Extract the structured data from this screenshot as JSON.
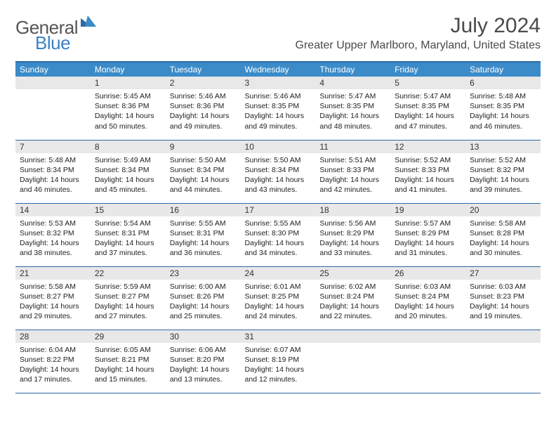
{
  "logo": {
    "text_left": "General",
    "text_right": "Blue"
  },
  "title": "July 2024",
  "location": "Greater Upper Marlboro, Maryland, United States",
  "colors": {
    "header_bg": "#3b8bc9",
    "header_text": "#ffffff",
    "border": "#2b6aa3",
    "daynum_bg": "#e8e8e8",
    "text": "#222222",
    "logo_gray": "#555555",
    "logo_blue": "#3b82c4"
  },
  "weekdays": [
    "Sunday",
    "Monday",
    "Tuesday",
    "Wednesday",
    "Thursday",
    "Friday",
    "Saturday"
  ],
  "weeks": [
    [
      {
        "n": "",
        "sunrise": "",
        "sunset": "",
        "daylight": "",
        "empty": true
      },
      {
        "n": "1",
        "sunrise": "Sunrise: 5:45 AM",
        "sunset": "Sunset: 8:36 PM",
        "daylight": "Daylight: 14 hours and 50 minutes."
      },
      {
        "n": "2",
        "sunrise": "Sunrise: 5:46 AM",
        "sunset": "Sunset: 8:36 PM",
        "daylight": "Daylight: 14 hours and 49 minutes."
      },
      {
        "n": "3",
        "sunrise": "Sunrise: 5:46 AM",
        "sunset": "Sunset: 8:35 PM",
        "daylight": "Daylight: 14 hours and 49 minutes."
      },
      {
        "n": "4",
        "sunrise": "Sunrise: 5:47 AM",
        "sunset": "Sunset: 8:35 PM",
        "daylight": "Daylight: 14 hours and 48 minutes."
      },
      {
        "n": "5",
        "sunrise": "Sunrise: 5:47 AM",
        "sunset": "Sunset: 8:35 PM",
        "daylight": "Daylight: 14 hours and 47 minutes."
      },
      {
        "n": "6",
        "sunrise": "Sunrise: 5:48 AM",
        "sunset": "Sunset: 8:35 PM",
        "daylight": "Daylight: 14 hours and 46 minutes."
      }
    ],
    [
      {
        "n": "7",
        "sunrise": "Sunrise: 5:48 AM",
        "sunset": "Sunset: 8:34 PM",
        "daylight": "Daylight: 14 hours and 46 minutes."
      },
      {
        "n": "8",
        "sunrise": "Sunrise: 5:49 AM",
        "sunset": "Sunset: 8:34 PM",
        "daylight": "Daylight: 14 hours and 45 minutes."
      },
      {
        "n": "9",
        "sunrise": "Sunrise: 5:50 AM",
        "sunset": "Sunset: 8:34 PM",
        "daylight": "Daylight: 14 hours and 44 minutes."
      },
      {
        "n": "10",
        "sunrise": "Sunrise: 5:50 AM",
        "sunset": "Sunset: 8:34 PM",
        "daylight": "Daylight: 14 hours and 43 minutes."
      },
      {
        "n": "11",
        "sunrise": "Sunrise: 5:51 AM",
        "sunset": "Sunset: 8:33 PM",
        "daylight": "Daylight: 14 hours and 42 minutes."
      },
      {
        "n": "12",
        "sunrise": "Sunrise: 5:52 AM",
        "sunset": "Sunset: 8:33 PM",
        "daylight": "Daylight: 14 hours and 41 minutes."
      },
      {
        "n": "13",
        "sunrise": "Sunrise: 5:52 AM",
        "sunset": "Sunset: 8:32 PM",
        "daylight": "Daylight: 14 hours and 39 minutes."
      }
    ],
    [
      {
        "n": "14",
        "sunrise": "Sunrise: 5:53 AM",
        "sunset": "Sunset: 8:32 PM",
        "daylight": "Daylight: 14 hours and 38 minutes."
      },
      {
        "n": "15",
        "sunrise": "Sunrise: 5:54 AM",
        "sunset": "Sunset: 8:31 PM",
        "daylight": "Daylight: 14 hours and 37 minutes."
      },
      {
        "n": "16",
        "sunrise": "Sunrise: 5:55 AM",
        "sunset": "Sunset: 8:31 PM",
        "daylight": "Daylight: 14 hours and 36 minutes."
      },
      {
        "n": "17",
        "sunrise": "Sunrise: 5:55 AM",
        "sunset": "Sunset: 8:30 PM",
        "daylight": "Daylight: 14 hours and 34 minutes."
      },
      {
        "n": "18",
        "sunrise": "Sunrise: 5:56 AM",
        "sunset": "Sunset: 8:29 PM",
        "daylight": "Daylight: 14 hours and 33 minutes."
      },
      {
        "n": "19",
        "sunrise": "Sunrise: 5:57 AM",
        "sunset": "Sunset: 8:29 PM",
        "daylight": "Daylight: 14 hours and 31 minutes."
      },
      {
        "n": "20",
        "sunrise": "Sunrise: 5:58 AM",
        "sunset": "Sunset: 8:28 PM",
        "daylight": "Daylight: 14 hours and 30 minutes."
      }
    ],
    [
      {
        "n": "21",
        "sunrise": "Sunrise: 5:58 AM",
        "sunset": "Sunset: 8:27 PM",
        "daylight": "Daylight: 14 hours and 29 minutes."
      },
      {
        "n": "22",
        "sunrise": "Sunrise: 5:59 AM",
        "sunset": "Sunset: 8:27 PM",
        "daylight": "Daylight: 14 hours and 27 minutes."
      },
      {
        "n": "23",
        "sunrise": "Sunrise: 6:00 AM",
        "sunset": "Sunset: 8:26 PM",
        "daylight": "Daylight: 14 hours and 25 minutes."
      },
      {
        "n": "24",
        "sunrise": "Sunrise: 6:01 AM",
        "sunset": "Sunset: 8:25 PM",
        "daylight": "Daylight: 14 hours and 24 minutes."
      },
      {
        "n": "25",
        "sunrise": "Sunrise: 6:02 AM",
        "sunset": "Sunset: 8:24 PM",
        "daylight": "Daylight: 14 hours and 22 minutes."
      },
      {
        "n": "26",
        "sunrise": "Sunrise: 6:03 AM",
        "sunset": "Sunset: 8:24 PM",
        "daylight": "Daylight: 14 hours and 20 minutes."
      },
      {
        "n": "27",
        "sunrise": "Sunrise: 6:03 AM",
        "sunset": "Sunset: 8:23 PM",
        "daylight": "Daylight: 14 hours and 19 minutes."
      }
    ],
    [
      {
        "n": "28",
        "sunrise": "Sunrise: 6:04 AM",
        "sunset": "Sunset: 8:22 PM",
        "daylight": "Daylight: 14 hours and 17 minutes."
      },
      {
        "n": "29",
        "sunrise": "Sunrise: 6:05 AM",
        "sunset": "Sunset: 8:21 PM",
        "daylight": "Daylight: 14 hours and 15 minutes."
      },
      {
        "n": "30",
        "sunrise": "Sunrise: 6:06 AM",
        "sunset": "Sunset: 8:20 PM",
        "daylight": "Daylight: 14 hours and 13 minutes."
      },
      {
        "n": "31",
        "sunrise": "Sunrise: 6:07 AM",
        "sunset": "Sunset: 8:19 PM",
        "daylight": "Daylight: 14 hours and 12 minutes."
      },
      {
        "n": "",
        "sunrise": "",
        "sunset": "",
        "daylight": "",
        "empty": true
      },
      {
        "n": "",
        "sunrise": "",
        "sunset": "",
        "daylight": "",
        "empty": true
      },
      {
        "n": "",
        "sunrise": "",
        "sunset": "",
        "daylight": "",
        "empty": true
      }
    ]
  ]
}
